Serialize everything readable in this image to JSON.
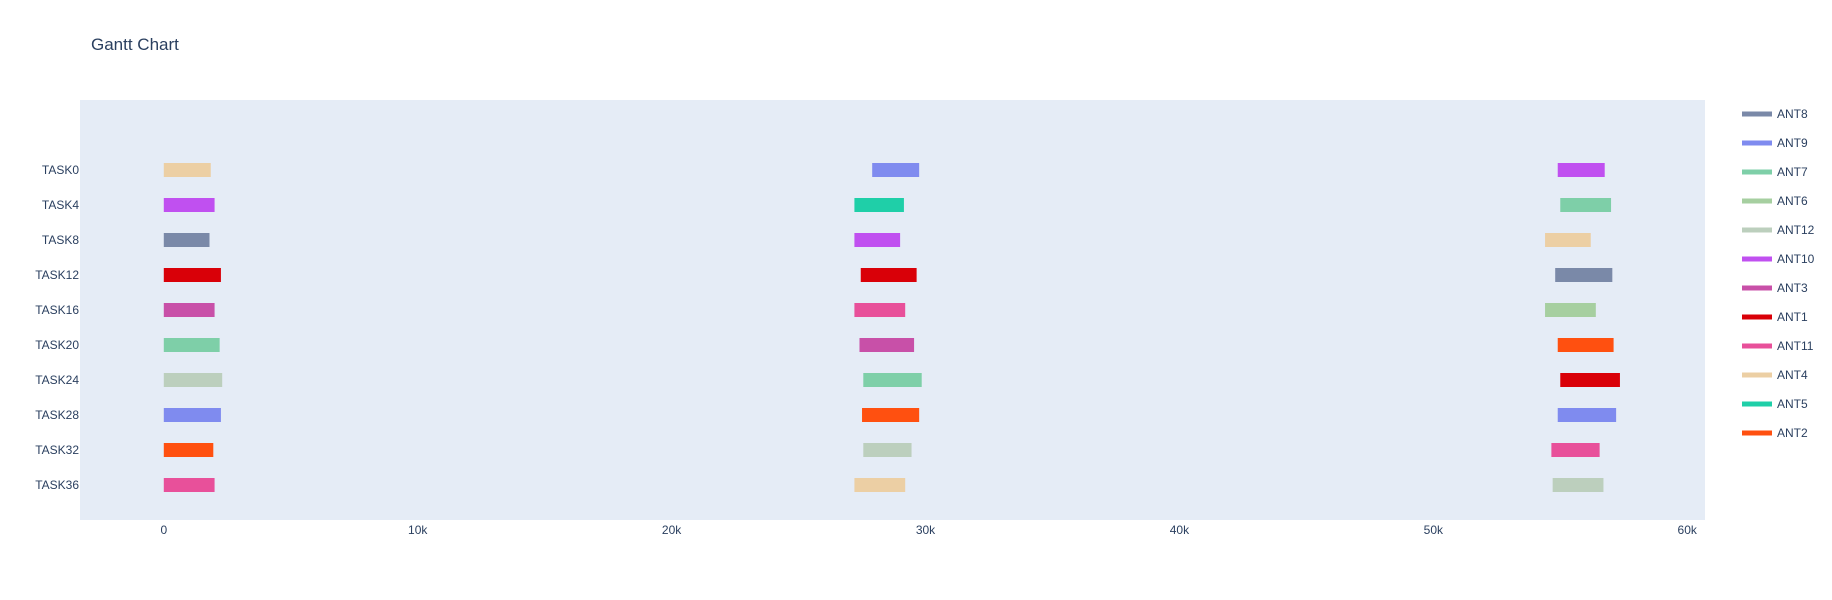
{
  "chart_data": {
    "type": "bar",
    "orientation": "horizontal",
    "title": "Gantt Chart",
    "xlabel": "",
    "ylabel": "",
    "xlim": [
      -3300,
      60700
    ],
    "x_ticks": [
      {
        "value": 0,
        "label": "0"
      },
      {
        "value": 10000,
        "label": "10k"
      },
      {
        "value": 20000,
        "label": "20k"
      },
      {
        "value": 30000,
        "label": "30k"
      },
      {
        "value": 40000,
        "label": "40k"
      },
      {
        "value": 50000,
        "label": "50k"
      },
      {
        "value": 60000,
        "label": "60k"
      }
    ],
    "categories": [
      "TASK0",
      "TASK4",
      "TASK8",
      "TASK12",
      "TASK16",
      "TASK20",
      "TASK24",
      "TASK28",
      "TASK32",
      "TASK36"
    ],
    "grid": false,
    "legend_position": "right",
    "series": [
      {
        "name": "ANT8",
        "color": "#7a89a8",
        "bars": [
          {
            "task": "TASK8",
            "start": 0,
            "end": 1800
          },
          {
            "task": "TASK12",
            "start": 54800,
            "end": 57050
          }
        ]
      },
      {
        "name": "ANT9",
        "color": "#7f8bef",
        "bars": [
          {
            "task": "TASK0",
            "start": 27900,
            "end": 29750
          },
          {
            "task": "TASK28",
            "start": 0,
            "end": 2250
          },
          {
            "task": "TASK28",
            "start": 54900,
            "end": 57200
          }
        ]
      },
      {
        "name": "ANT7",
        "color": "#7ecfa8",
        "bars": [
          {
            "task": "TASK20",
            "start": 0,
            "end": 2200
          },
          {
            "task": "TASK24",
            "start": 27550,
            "end": 29850
          },
          {
            "task": "TASK4",
            "start": 55000,
            "end": 57000
          }
        ]
      },
      {
        "name": "ANT6",
        "color": "#a6cfa0",
        "bars": [
          {
            "task": "TASK16",
            "start": 54400,
            "end": 56400
          }
        ]
      },
      {
        "name": "ANT12",
        "color": "#bccfbd",
        "bars": [
          {
            "task": "TASK24",
            "start": 0,
            "end": 2300
          },
          {
            "task": "TASK32",
            "start": 27550,
            "end": 29450
          },
          {
            "task": "TASK36",
            "start": 54700,
            "end": 56700
          }
        ]
      },
      {
        "name": "ANT10",
        "color": "#c050f0",
        "bars": [
          {
            "task": "TASK4",
            "start": 0,
            "end": 2000
          },
          {
            "task": "TASK8",
            "start": 27200,
            "end": 29000
          },
          {
            "task": "TASK0",
            "start": 54900,
            "end": 56750
          }
        ]
      },
      {
        "name": "ANT3",
        "color": "#c850a8",
        "bars": [
          {
            "task": "TASK16",
            "start": 0,
            "end": 2000
          },
          {
            "task": "TASK20",
            "start": 27400,
            "end": 29550
          }
        ]
      },
      {
        "name": "ANT1",
        "color": "#d90008",
        "bars": [
          {
            "task": "TASK12",
            "start": 0,
            "end": 2250
          },
          {
            "task": "TASK12",
            "start": 27450,
            "end": 29650
          },
          {
            "task": "TASK24",
            "start": 55000,
            "end": 57350
          }
        ]
      },
      {
        "name": "ANT11",
        "color": "#e8509a",
        "bars": [
          {
            "task": "TASK36",
            "start": 0,
            "end": 2000
          },
          {
            "task": "TASK16",
            "start": 27200,
            "end": 29200
          },
          {
            "task": "TASK32",
            "start": 54650,
            "end": 56550
          }
        ]
      },
      {
        "name": "ANT4",
        "color": "#eccfa4",
        "bars": [
          {
            "task": "TASK0",
            "start": 0,
            "end": 1850
          },
          {
            "task": "TASK36",
            "start": 27200,
            "end": 29200
          },
          {
            "task": "TASK8",
            "start": 54400,
            "end": 56200
          }
        ]
      },
      {
        "name": "ANT5",
        "color": "#1fcfa8",
        "bars": [
          {
            "task": "TASK4",
            "start": 27200,
            "end": 29150
          }
        ]
      },
      {
        "name": "ANT2",
        "color": "#ff5010",
        "bars": [
          {
            "task": "TASK32",
            "start": 0,
            "end": 1950
          },
          {
            "task": "TASK28",
            "start": 27500,
            "end": 29750
          },
          {
            "task": "TASK20",
            "start": 54900,
            "end": 57100
          }
        ]
      }
    ]
  },
  "colors": {
    "plot_background": "#e5ecf6",
    "text": "#2a3f5f"
  }
}
